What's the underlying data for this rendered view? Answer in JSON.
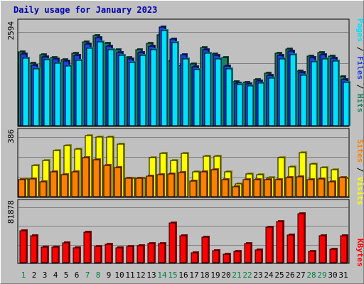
{
  "chart_data": [
    {
      "type": "bar",
      "title": "Daily usage for January 2023",
      "categories": [
        "1",
        "2",
        "3",
        "4",
        "5",
        "6",
        "7",
        "8",
        "9",
        "10",
        "11",
        "12",
        "13",
        "14",
        "15",
        "16",
        "17",
        "18",
        "19",
        "20",
        "21",
        "22",
        "23",
        "24",
        "25",
        "26",
        "27",
        "28",
        "29",
        "30",
        "31"
      ],
      "weekend_days": [
        "1",
        "7",
        "8",
        "14",
        "15",
        "21",
        "22",
        "28",
        "29"
      ],
      "ymax_label": "2594",
      "ylim": [
        0,
        2594
      ],
      "legend": [
        "Pages",
        "Files",
        "Hits"
      ],
      "colors": {
        "Pages": "#00e0ff",
        "Files": "#2040e0",
        "Hits": "#208060"
      },
      "series": [
        {
          "name": "Hits",
          "values": [
            1860,
            1570,
            1790,
            1720,
            1660,
            1820,
            2110,
            2270,
            2080,
            1910,
            1720,
            1910,
            2080,
            2290,
            1620,
            1520,
            1550,
            1970,
            1800,
            1710,
            1110,
            1090,
            1160,
            1320,
            1830,
            1930,
            1370,
            1760,
            1840,
            1760,
            1230
          ]
        },
        {
          "name": "Files",
          "values": [
            1800,
            1520,
            1740,
            1680,
            1620,
            1770,
            2050,
            2210,
            2010,
            1850,
            1680,
            1850,
            2010,
            2490,
            2190,
            1790,
            1490,
            1910,
            1770,
            1510,
            1080,
            1050,
            1120,
            1270,
            1770,
            1870,
            1340,
            1710,
            1790,
            1700,
            1170
          ]
        },
        {
          "name": "Pages",
          "values": [
            1700,
            1440,
            1660,
            1580,
            1510,
            1650,
            1950,
            2110,
            1920,
            1780,
            1600,
            1780,
            1920,
            2400,
            2100,
            1690,
            1420,
            1830,
            1680,
            1430,
            1030,
            1000,
            1070,
            1200,
            1690,
            1790,
            1270,
            1610,
            1680,
            1620,
            1100
          ]
        }
      ]
    },
    {
      "type": "bar",
      "ymax_label": "386",
      "ylim": [
        0,
        386
      ],
      "legend": [
        "Sites",
        "Visits"
      ],
      "colors": {
        "Sites": "#ff8000",
        "Visits": "#ffff00"
      },
      "series": [
        {
          "name": "Visits",
          "values": [
            105,
            185,
            215,
            275,
            305,
            285,
            365,
            355,
            355,
            315,
            110,
            110,
            235,
            260,
            215,
            260,
            150,
            240,
            240,
            150,
            75,
            135,
            130,
            115,
            235,
            180,
            265,
            195,
            175,
            160,
            110
          ]
        },
        {
          "name": "Sites",
          "values": [
            100,
            105,
            90,
            150,
            130,
            150,
            235,
            220,
            185,
            175,
            110,
            110,
            125,
            130,
            135,
            145,
            95,
            150,
            160,
            100,
            60,
            100,
            100,
            100,
            100,
            115,
            120,
            100,
            105,
            90,
            115
          ]
        }
      ]
    },
    {
      "type": "bar",
      "ymax_label": "81878",
      "ylim": [
        0,
        81878
      ],
      "legend": [
        "KBytes"
      ],
      "colors": {
        "KBytes": "#ff0000"
      },
      "series": [
        {
          "name": "KBytes",
          "values": [
            43500,
            37000,
            21000,
            21500,
            27500,
            20500,
            42000,
            22500,
            25000,
            20000,
            22000,
            23000,
            26000,
            26000,
            55000,
            37500,
            14000,
            35000,
            17000,
            11500,
            16000,
            26000,
            17500,
            49000,
            57000,
            38000,
            67000,
            16000,
            37500,
            19000,
            37500
          ]
        }
      ]
    }
  ]
}
